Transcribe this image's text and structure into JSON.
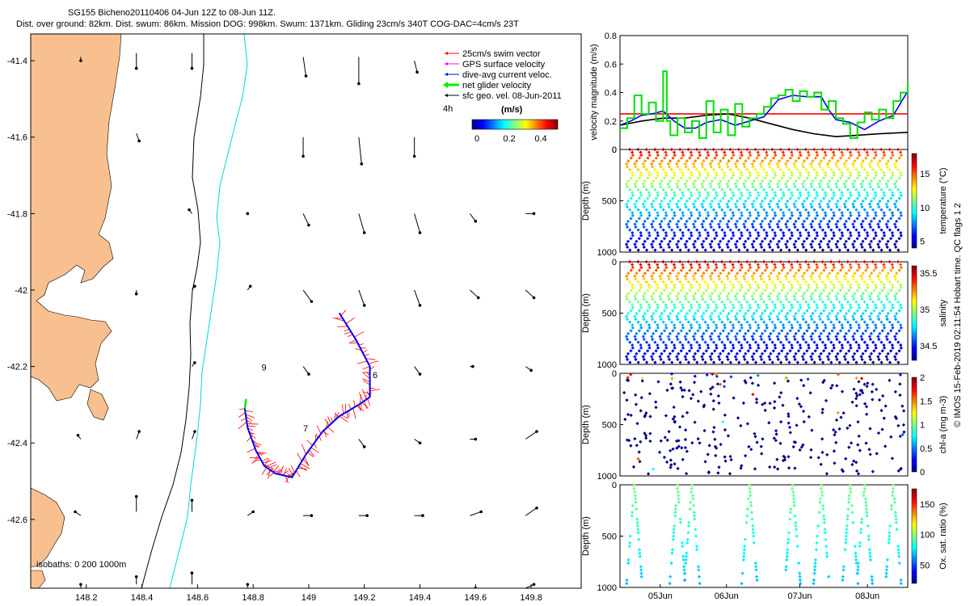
{
  "header": {
    "line1": "SG155 Bicheno20110406 04-Jun 12Z to 08-Jun 11Z.",
    "line2": "Dist. over ground: 82km. Dist. swum: 86km. Mission DOG: 998km. Swum: 1371km. Gliding 23cm/s 340T COG-DAC=4cm/s 23T"
  },
  "colors": {
    "land": "#f9c08f",
    "isobath200": "#000000",
    "isobath1000": "#00e5e5",
    "swim": "#ff0000",
    "gps": "#ff00ff",
    "dac": "#0000ff",
    "net": "#00ff00",
    "sfc": "#000000"
  },
  "chart_data": [
    {
      "type": "scatter",
      "name": "map",
      "xlim": [
        148.0,
        149.98
      ],
      "ylim": [
        -42.78,
        -41.33
      ],
      "xticks": [
        "148.2",
        "148.4",
        "148.6",
        "148.8",
        "149",
        "149.2",
        "149.4",
        "149.6",
        "149.8"
      ],
      "yticks": [
        "-41.4",
        "-41.6",
        "-41.8",
        "-42",
        "-42.2",
        "-42.4",
        "-42.6"
      ],
      "legend": [
        {
          "label": "25cm/s swim vector",
          "color": "#ff0000"
        },
        {
          "label": "GPS surface velocity",
          "color": "#ff00ff"
        },
        {
          "label": "dive-avg current veloc.",
          "color": "#0000ff"
        },
        {
          "label": "net glider velocity",
          "color": "#00ff00"
        },
        {
          "label": "sfc geo. vel. 08-Jun-2011",
          "color": "#000000"
        }
      ],
      "legend_extra": "4h",
      "colorbar": {
        "label": "(m/s)",
        "ticks": [
          "0",
          "0.2",
          "0.4"
        ],
        "range": [
          0,
          0.5
        ]
      },
      "isobaths_label": "isobaths: 0   200  1000m",
      "annotations": [
        {
          "text": "9",
          "lon": 148.83,
          "lat": -42.21
        },
        {
          "text": "6",
          "lon": 149.23,
          "lat": -42.23
        },
        {
          "text": "7",
          "lon": 148.98,
          "lat": -42.37
        }
      ],
      "track": [
        [
          148.77,
          -42.31
        ],
        [
          148.78,
          -42.36
        ],
        [
          148.81,
          -42.42
        ],
        [
          148.84,
          -42.46
        ],
        [
          148.88,
          -42.48
        ],
        [
          148.94,
          -42.49
        ],
        [
          148.99,
          -42.43
        ],
        [
          149.05,
          -42.37
        ],
        [
          149.11,
          -42.33
        ],
        [
          149.18,
          -42.3
        ],
        [
          149.22,
          -42.28
        ],
        [
          149.22,
          -42.2
        ],
        [
          149.17,
          -42.13
        ],
        [
          149.11,
          -42.06
        ]
      ],
      "sfc_vectors": [
        [
          148.18,
          -41.39,
          0.0,
          -0.01
        ],
        [
          148.38,
          -41.38,
          0.0,
          -0.04
        ],
        [
          148.58,
          -41.38,
          0.0,
          -0.04
        ],
        [
          148.98,
          -41.39,
          0.01,
          -0.05
        ],
        [
          149.18,
          -41.39,
          0.0,
          -0.07
        ],
        [
          149.38,
          -41.4,
          0.01,
          -0.03
        ],
        [
          148.38,
          -41.59,
          0.01,
          -0.02
        ],
        [
          148.98,
          -41.6,
          0.0,
          -0.05
        ],
        [
          149.18,
          -41.6,
          0.01,
          -0.07
        ],
        [
          149.38,
          -41.6,
          0.0,
          -0.05
        ],
        [
          148.58,
          -41.8,
          -0.01,
          0.01
        ],
        [
          148.78,
          -41.8,
          0.0,
          0.0
        ],
        [
          148.98,
          -41.8,
          0.02,
          -0.03
        ],
        [
          149.18,
          -41.8,
          0.02,
          -0.05
        ],
        [
          149.38,
          -41.8,
          0.02,
          -0.05
        ],
        [
          149.58,
          -41.8,
          0.02,
          -0.02
        ],
        [
          149.78,
          -41.8,
          0.03,
          0.0
        ],
        [
          148.38,
          -42.0,
          0.0,
          -0.01
        ],
        [
          148.58,
          -42.0,
          0.01,
          0.01
        ],
        [
          148.78,
          -42.0,
          0.01,
          0.01
        ],
        [
          148.98,
          -42.0,
          0.03,
          -0.03
        ],
        [
          149.18,
          -42.0,
          0.02,
          -0.04
        ],
        [
          149.38,
          -42.0,
          0.02,
          -0.04
        ],
        [
          149.58,
          -42.0,
          0.03,
          -0.02
        ],
        [
          149.78,
          -42.0,
          0.03,
          -0.02
        ],
        [
          148.58,
          -42.2,
          0.01,
          0.01
        ],
        [
          148.98,
          -42.2,
          0.02,
          -0.02
        ],
        [
          149.38,
          -42.2,
          0.02,
          -0.02
        ],
        [
          149.58,
          -42.2,
          0.01,
          0.0
        ],
        [
          149.78,
          -42.2,
          0.02,
          -0.01
        ],
        [
          148.18,
          -42.39,
          -0.01,
          0.01
        ],
        [
          148.38,
          -42.39,
          0.01,
          0.02
        ],
        [
          148.58,
          -42.39,
          0.01,
          0.02
        ],
        [
          149.18,
          -42.39,
          0.02,
          -0.02
        ],
        [
          149.38,
          -42.39,
          0.02,
          -0.01
        ],
        [
          149.58,
          -42.39,
          0.02,
          0.0
        ],
        [
          149.78,
          -42.39,
          0.04,
          0.02
        ],
        [
          148.18,
          -42.59,
          -0.02,
          0.01
        ],
        [
          148.38,
          -42.58,
          0.0,
          0.04
        ],
        [
          148.58,
          -42.58,
          0.0,
          0.03
        ],
        [
          148.78,
          -42.59,
          0.02,
          0.01
        ],
        [
          148.98,
          -42.59,
          0.03,
          0.0
        ],
        [
          149.18,
          -42.59,
          0.03,
          0.0
        ],
        [
          149.38,
          -42.59,
          0.03,
          0.0
        ],
        [
          149.58,
          -42.59,
          0.04,
          0.01
        ],
        [
          149.78,
          -42.59,
          0.04,
          0.02
        ],
        [
          148.18,
          -42.78,
          0.0,
          0.01
        ],
        [
          148.38,
          -42.77,
          0.0,
          0.02
        ],
        [
          148.58,
          -42.77,
          0.0,
          0.03
        ],
        [
          148.78,
          -42.78,
          0.0,
          0.01
        ],
        [
          149.58,
          -42.78,
          0.02,
          0.0
        ],
        [
          149.78,
          -42.78,
          0.03,
          0.01
        ]
      ]
    },
    {
      "type": "line",
      "name": "velocity",
      "ylabel": "velocity magnitude (m/s)",
      "ylim": [
        0,
        0.8
      ],
      "yticks": [
        "0",
        "0.2",
        "0.4",
        "0.6",
        "0.8"
      ],
      "xlim": [
        0,
        4.0
      ],
      "series": [
        {
          "color": "#ff0000",
          "x": [
            0,
            4.0
          ],
          "y": [
            0.25,
            0.25
          ]
        },
        {
          "color": "#000000",
          "x": [
            0,
            0.3,
            0.6,
            0.9,
            1.2,
            1.5,
            1.8,
            2.1,
            2.4,
            2.7,
            3.0,
            3.3,
            3.6,
            4.0
          ],
          "y": [
            0.17,
            0.2,
            0.22,
            0.22,
            0.24,
            0.25,
            0.22,
            0.18,
            0.14,
            0.11,
            0.09,
            0.1,
            0.11,
            0.12
          ]
        },
        {
          "color": "#0000ff",
          "x": [
            0,
            0.15,
            0.3,
            0.45,
            0.6,
            0.75,
            0.9,
            1.05,
            1.2,
            1.4,
            1.6,
            1.8,
            2.0,
            2.2,
            2.4,
            2.6,
            2.8,
            2.9,
            3.0,
            3.2,
            3.4,
            3.6,
            3.8,
            4.0
          ],
          "y": [
            0.17,
            0.2,
            0.24,
            0.25,
            0.27,
            0.2,
            0.15,
            0.15,
            0.19,
            0.21,
            0.17,
            0.2,
            0.23,
            0.35,
            0.38,
            0.37,
            0.37,
            0.28,
            0.21,
            0.19,
            0.14,
            0.2,
            0.24,
            0.41
          ]
        },
        {
          "color": "#00e000",
          "x": [
            0,
            0.1,
            0.2,
            0.3,
            0.4,
            0.5,
            0.6,
            0.65,
            0.7,
            0.8,
            0.9,
            1.0,
            1.1,
            1.2,
            1.3,
            1.4,
            1.5,
            1.6,
            1.7,
            1.8,
            1.9,
            2.0,
            2.1,
            2.2,
            2.3,
            2.4,
            2.5,
            2.6,
            2.7,
            2.8,
            2.9,
            3.0,
            3.1,
            3.2,
            3.3,
            3.4,
            3.5,
            3.6,
            3.7,
            3.8,
            3.9,
            4.0
          ],
          "y": [
            0.15,
            0.22,
            0.38,
            0.25,
            0.33,
            0.2,
            0.55,
            0.2,
            0.1,
            0.22,
            0.12,
            0.2,
            0.08,
            0.34,
            0.12,
            0.28,
            0.1,
            0.32,
            0.16,
            0.22,
            0.25,
            0.3,
            0.36,
            0.38,
            0.42,
            0.34,
            0.41,
            0.37,
            0.4,
            0.28,
            0.34,
            0.22,
            0.18,
            0.08,
            0.19,
            0.26,
            0.21,
            0.28,
            0.22,
            0.34,
            0.4,
            0.47
          ]
        }
      ]
    },
    {
      "type": "scatter",
      "name": "temperature",
      "ylabel": "Depth (m)",
      "cbar_label": "temperature (°C)",
      "cbar_ticks": [
        "5",
        "10",
        "15"
      ],
      "cbar_range": [
        4,
        18
      ],
      "yticks": [
        "0",
        "500",
        "1000"
      ],
      "ylim": [
        0,
        1000
      ],
      "profiles": 33
    },
    {
      "type": "scatter",
      "name": "salinity",
      "ylabel": "Depth (m)",
      "cbar_label": "salinity",
      "cbar_ticks": [
        "34.5",
        "35",
        "35.5"
      ],
      "cbar_range": [
        34.3,
        35.6
      ],
      "yticks": [
        "0",
        "500",
        "1000"
      ],
      "ylim": [
        0,
        1000
      ],
      "profiles": 33
    },
    {
      "type": "scatter",
      "name": "chla",
      "ylabel": "Depth (m)",
      "cbar_label": "chl-a (mg m-3)",
      "cbar_ticks": [
        "0",
        "0.5",
        "1",
        "1.5",
        "2"
      ],
      "cbar_range": [
        0,
        2
      ],
      "yticks": [
        "0",
        "500",
        "1000"
      ],
      "ylim": [
        0,
        1000
      ]
    },
    {
      "type": "scatter",
      "name": "oxygen",
      "ylabel": "Depth (m)",
      "cbar_label": "Ox. sat. ratio (%)",
      "cbar_ticks": [
        "50",
        "100",
        "150"
      ],
      "cbar_range": [
        20,
        175
      ],
      "yticks": [
        "0",
        "500",
        "1000"
      ],
      "ylim": [
        0,
        1000
      ],
      "xticks": [
        "05Jun",
        "06Jun",
        "07Jun",
        "08Jun"
      ]
    }
  ],
  "side_note": "© IMOS 15-Feb-2019 02:11:54 Hobart time. QC flags 1  2"
}
